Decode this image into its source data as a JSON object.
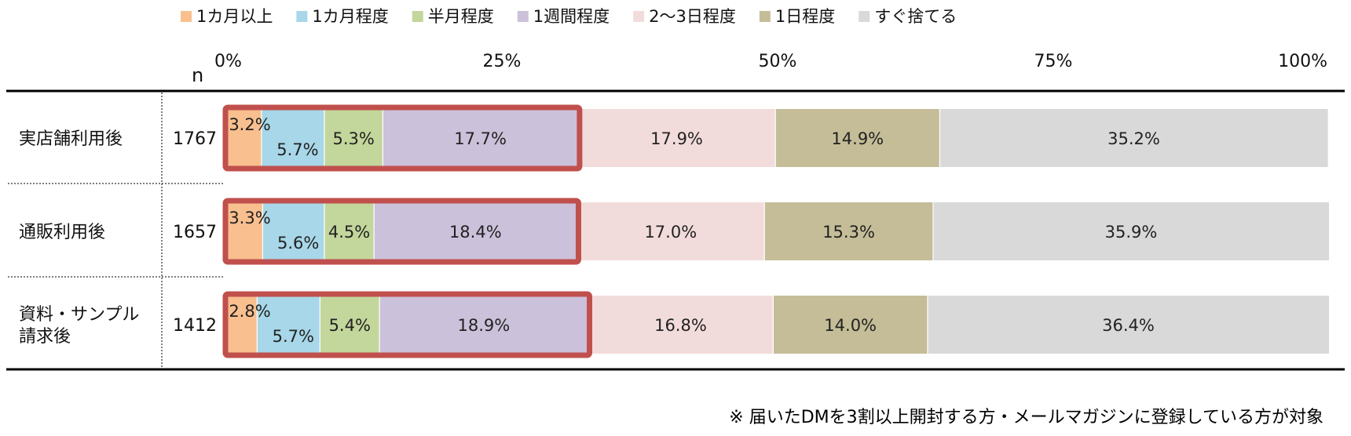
{
  "chart_data": {
    "type": "bar",
    "orientation": "horizontal",
    "stacked": true,
    "percent": true,
    "n_label": "n",
    "x_ticks": [
      "0%",
      "25%",
      "50%",
      "75%",
      "100%"
    ],
    "xlim": [
      0,
      100
    ],
    "legend_position": "top",
    "categories": [
      "実店舗利用後",
      "通販利用後",
      "資料・サンプル請求後"
    ],
    "category_lines": [
      [
        "実店舗利用後"
      ],
      [
        "通販利用後"
      ],
      [
        "資料・サンプル",
        "請求後"
      ]
    ],
    "n_values": [
      "1767",
      "1657",
      "1412"
    ],
    "series": [
      {
        "name": "1カ月以上",
        "color": "#f9bf8f",
        "values": [
          3.2,
          3.3,
          2.8
        ],
        "labels": [
          "3.2%",
          "3.3%",
          "2.8%"
        ]
      },
      {
        "name": "1カ月程度",
        "color": "#a7d7e8",
        "values": [
          5.7,
          5.6,
          5.7
        ],
        "labels": [
          "5.7%",
          "5.6%",
          "5.7%"
        ]
      },
      {
        "name": "半月程度",
        "color": "#c3d69b",
        "values": [
          5.3,
          4.5,
          5.4
        ],
        "labels": [
          "5.3%",
          "4.5%",
          "5.4%"
        ]
      },
      {
        "name": "1週間程度",
        "color": "#ccc1da",
        "values": [
          17.7,
          18.4,
          18.9
        ],
        "labels": [
          "17.7%",
          "18.4%",
          "18.9%"
        ]
      },
      {
        "name": "2～3日程度",
        "color": "#f2dcdb",
        "values": [
          17.9,
          17.0,
          16.8
        ],
        "labels": [
          "17.9%",
          "17.0%",
          "16.8%"
        ]
      },
      {
        "name": "1日程度",
        "color": "#c4bd97",
        "values": [
          14.9,
          15.3,
          14.0
        ],
        "labels": [
          "14.9%",
          "15.3%",
          "14.0%"
        ]
      },
      {
        "name": "すぐ捨てる",
        "color": "#d9d9d9",
        "values": [
          35.2,
          35.9,
          36.4
        ],
        "labels": [
          "35.2%",
          "35.9%",
          "36.4%"
        ]
      }
    ],
    "highlight": {
      "series_count": 4,
      "color": "#c0504d"
    }
  },
  "footnote": "※ 届いたDMを3割以上開封する方・メールマガジンに登録している方が対象"
}
